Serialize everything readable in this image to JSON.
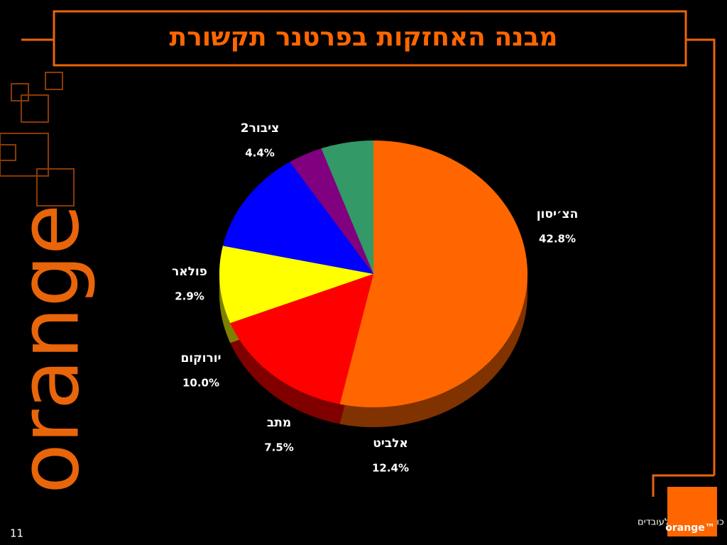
{
  "chart_data": {
    "type": "pie",
    "title": "מבנה האחזקות בפרטנר תקשורת",
    "categories": [
      "הצ׳יסון",
      "אלביט",
      "מתב",
      "יורוקום",
      "פולאר",
      "ציבור2"
    ],
    "values": [
      42.8,
      12.4,
      7.5,
      10.0,
      2.9,
      4.4
    ],
    "value_labels": [
      "42.8%",
      "12.4%",
      "7.5%",
      "10.0%",
      "2.9%",
      "4.4%"
    ],
    "colors": [
      "#ff6600",
      "#ff0000",
      "#ffff00",
      "#0000ff",
      "#800080",
      "#339966"
    ]
  },
  "footnote": "*הערה: שיעור האחזקות בקירוב ; לא כולל אופציות לעובדים",
  "slide_number": "11",
  "brand": "orange",
  "logo_text": "orange™"
}
